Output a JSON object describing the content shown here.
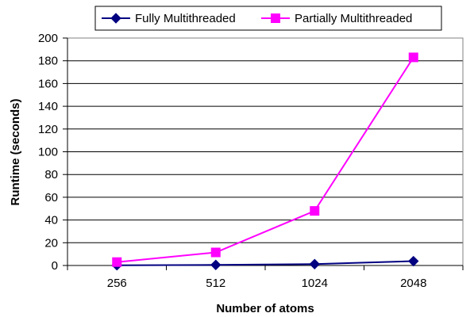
{
  "chart_data": {
    "type": "line",
    "categories": [
      "256",
      "512",
      "1024",
      "2048"
    ],
    "series": [
      {
        "name": "Fully Multithreaded",
        "values": [
          0.2,
          0.5,
          1.2,
          3.8
        ],
        "color": "#000080",
        "marker": "diamond"
      },
      {
        "name": "Partially Multithreaded",
        "values": [
          3,
          11.5,
          48,
          183
        ],
        "color": "#FF00FF",
        "marker": "square"
      }
    ],
    "title": "",
    "xlabel": "Number of atoms",
    "ylabel": "Runtime (seconds)",
    "ylim": [
      0,
      200
    ],
    "yticks": [
      "0",
      "20",
      "40",
      "60",
      "80",
      "100",
      "120",
      "140",
      "160",
      "180",
      "200"
    ],
    "grid": true,
    "legend_position": "top"
  }
}
